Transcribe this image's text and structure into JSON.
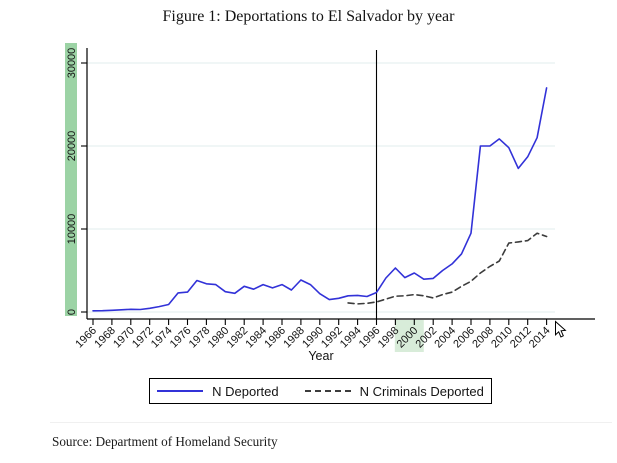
{
  "title": "Figure 1: Deportations to El Salvador by year",
  "source": "Source: Department of Homeland Security",
  "legend": {
    "items": [
      {
        "label": "N Deported",
        "style": "solid",
        "color": "#3232d8"
      },
      {
        "label": "N Criminals Deported",
        "style": "dashed",
        "color": "#3c3c3c"
      }
    ]
  },
  "colors": {
    "deported_line": "#3232d8",
    "criminals_line": "#3c3c3c",
    "gridline": "#e6f1f0",
    "axis": "#000000",
    "reference_line": "#000000",
    "y_axis_highlight": "#9cd3a5",
    "x_tick_2000_highlight": "#d8ecd9"
  },
  "chart_data": {
    "type": "line",
    "title": "Figure 1: Deportations to El Salvador by year",
    "xlabel": "Year",
    "ylabel": "",
    "xlim": [
      1965,
      2015.5
    ],
    "ylim": [
      0,
      30000
    ],
    "grid": true,
    "legend_position": "bottom-center",
    "x_ticks": [
      1966,
      1968,
      1970,
      1972,
      1974,
      1976,
      1978,
      1980,
      1982,
      1984,
      1986,
      1988,
      1990,
      1992,
      1994,
      1996,
      1998,
      2000,
      2002,
      2004,
      2006,
      2008,
      2010,
      2012,
      2014
    ],
    "y_ticks": [
      0,
      10000,
      20000,
      30000
    ],
    "reference_line_x": 1996,
    "highlighted_x_tick": 2000,
    "y_axis_labels_highlighted": true,
    "series": [
      {
        "name": "N Deported",
        "style": "solid",
        "color": "#3232d8",
        "x": [
          1966,
          1967,
          1968,
          1969,
          1970,
          1971,
          1972,
          1973,
          1974,
          1975,
          1976,
          1977,
          1978,
          1979,
          1980,
          1981,
          1982,
          1983,
          1984,
          1985,
          1986,
          1987,
          1988,
          1989,
          1990,
          1991,
          1992,
          1993,
          1994,
          1995,
          1996,
          1997,
          1998,
          1999,
          2000,
          2001,
          2002,
          2003,
          2004,
          2005,
          2006,
          2007,
          2008,
          2009,
          2010,
          2011,
          2012,
          2013,
          2014
        ],
        "values": [
          150,
          160,
          200,
          260,
          320,
          300,
          450,
          650,
          900,
          2300,
          2400,
          3800,
          3400,
          3300,
          2450,
          2250,
          3100,
          2750,
          3300,
          2900,
          3300,
          2650,
          3850,
          3300,
          2200,
          1500,
          1650,
          1950,
          2000,
          1870,
          2350,
          4100,
          5300,
          4150,
          4700,
          3950,
          4050,
          5000,
          5800,
          7000,
          9500,
          20000,
          20000,
          20850,
          19800,
          17300,
          18700,
          21000,
          27000
        ]
      },
      {
        "name": "N Criminals Deported",
        "style": "dashed",
        "color": "#3c3c3c",
        "x": [
          1993,
          1994,
          1995,
          1996,
          1997,
          1998,
          1999,
          2000,
          2001,
          2002,
          2003,
          2004,
          2005,
          2006,
          2007,
          2008,
          2009,
          2010,
          2011,
          2012,
          2013,
          2014
        ],
        "values": [
          1100,
          980,
          1050,
          1200,
          1550,
          1900,
          1950,
          2100,
          1950,
          1700,
          2100,
          2400,
          3100,
          3700,
          4700,
          5500,
          6150,
          8300,
          8450,
          8600,
          9500,
          9100
        ]
      }
    ]
  }
}
